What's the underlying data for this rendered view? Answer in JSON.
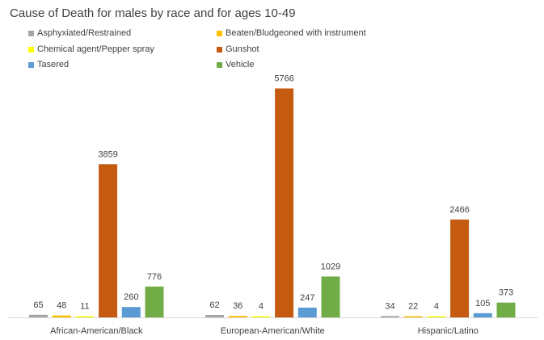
{
  "chart_data": {
    "type": "bar",
    "title": "Cause of Death for males by race and for ages 10-49",
    "xlabel": "",
    "ylabel": "",
    "categories": [
      "African-American/Black",
      "European-American/White",
      "Hispanic/Latino"
    ],
    "series": [
      {
        "name": "Asphyxiated/Restrained",
        "color": "#a5a5a5",
        "values": [
          65,
          62,
          34
        ]
      },
      {
        "name": "Beaten/Bludgeoned with instrument",
        "color": "#ffc000",
        "values": [
          48,
          36,
          22
        ]
      },
      {
        "name": "Chemical agent/Pepper spray",
        "color": "#ffff00",
        "values": [
          11,
          4,
          4
        ]
      },
      {
        "name": "Gunshot",
        "color": "#c55a11",
        "values": [
          3859,
          5766,
          2466
        ]
      },
      {
        "name": "Tasered",
        "color": "#5b9bd5",
        "values": [
          260,
          247,
          105
        ]
      },
      {
        "name": "Vehicle",
        "color": "#70ad47",
        "values": [
          776,
          1029,
          373
        ]
      }
    ],
    "ylim": [
      0,
      6000
    ],
    "grid": false,
    "legend_position": "top",
    "data_labels": true
  }
}
